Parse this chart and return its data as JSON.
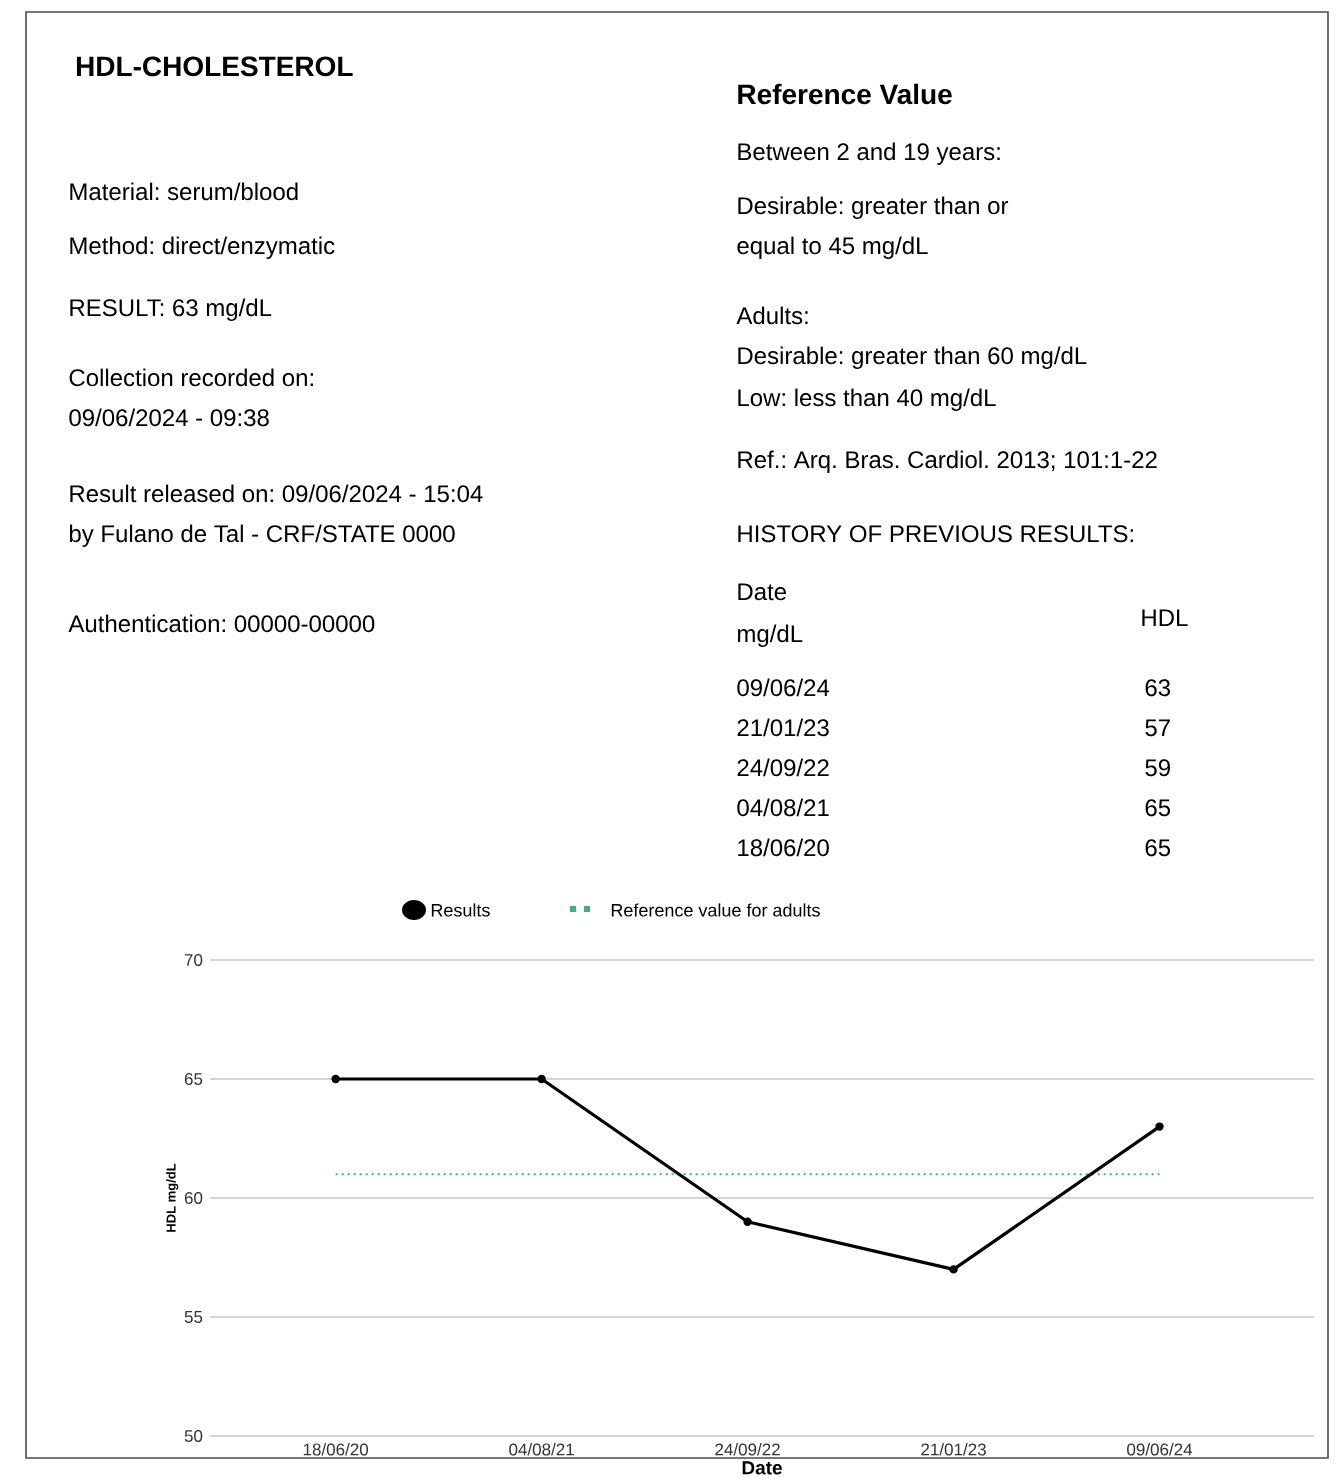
{
  "chart_data": {
    "type": "line",
    "title": "HDL-CHOLESTEROL",
    "xlabel": "Date",
    "ylabel": "HDL mg/dL",
    "categories": [
      "18/06/20",
      "04/08/21",
      "24/09/22",
      "21/01/23",
      "09/06/24"
    ],
    "series": [
      {
        "name": "Results",
        "color": "#000000",
        "values": [
          65,
          65,
          59,
          57,
          63
        ]
      }
    ],
    "ylim": [
      50,
      70
    ],
    "yticks": [
      50,
      55,
      60,
      65,
      70
    ],
    "ref_lines": [
      {
        "axis": "y",
        "value": 61,
        "label": "Reference value for adults",
        "color": "#3cb371",
        "line_style": "dotted"
      }
    ],
    "grid": "y",
    "legend": "top",
    "marker": "circle",
    "line_style": "solid",
    "annotations": [
      "Material: serum/blood",
      "Method: direct/enzymatic",
      "RESULT: 63 mg/dL",
      "Collection recorded on:",
      "09/06/2024 - 09:38",
      "Result released on: 09/06/2024 - 15:04",
      "by Fulano de Tal - CRF/STATE 0000",
      "Authentication: 00000-00000",
      "Reference Value",
      "Between 2 and 19 years:",
      "Desirable: greater than or",
      "equal to 45 mg/dL",
      "Adults:",
      "Desirable: greater than 60 mg/dL",
      "Low: less than 40 mg/dL",
      "Ref.: Arq. Bras. Cardiol. 2013; 101:1-22",
      "HISTORY OF PREVIOUS RESULTS:",
      "Date",
      "mg/dL",
      "HDL",
      "09/06/24",
      "63",
      "21/01/23",
      "57",
      "24/09/22",
      "59",
      "04/08/21",
      "65",
      "18/06/20",
      "65"
    ]
  }
}
